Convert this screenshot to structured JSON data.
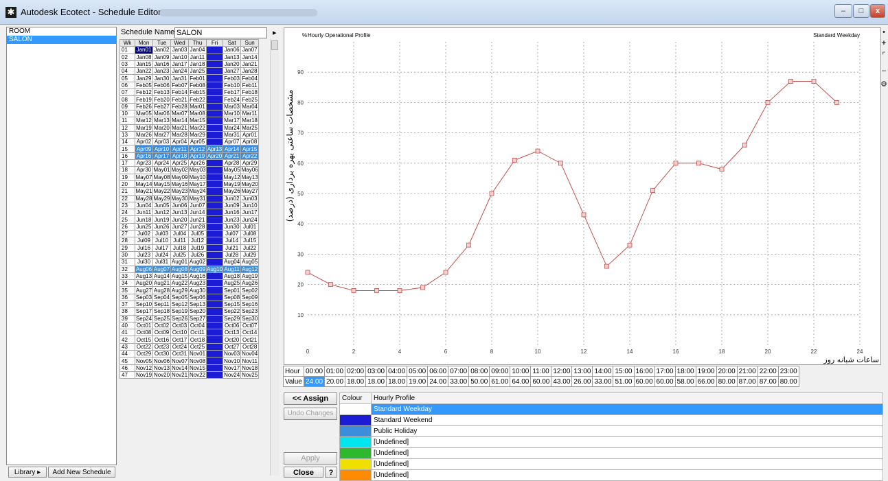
{
  "window": {
    "title": "Autodesk Ecotect - Schedule Editor",
    "controls": {
      "minimize": "–",
      "maximize": "□",
      "close": "x"
    }
  },
  "schedule_list": {
    "items": [
      "ROOM",
      "SALON"
    ],
    "selected": "SALON"
  },
  "bottom_left": {
    "library_label": "Library ▸",
    "add_schedule_label": "Add New Schedule"
  },
  "schedule_name": {
    "label": "Schedule Name:",
    "value": "SALON",
    "arrow": "▸"
  },
  "calendar": {
    "headers": [
      "Wk",
      "Mon",
      "Tue",
      "Wed",
      "Thu",
      "Fri",
      "Sat",
      "Sun"
    ],
    "rows": [
      [
        "01",
        "Jan01",
        "Jan02",
        "Jan03",
        "Jan04",
        "",
        "Jan06",
        "Jan07"
      ],
      [
        "02",
        "Jan08",
        "Jan09",
        "Jan10",
        "Jan11",
        "",
        "Jan13",
        "Jan14"
      ],
      [
        "03",
        "Jan15",
        "Jan16",
        "Jan17",
        "Jan18",
        "",
        "Jan20",
        "Jan21"
      ],
      [
        "04",
        "Jan22",
        "Jan23",
        "Jan24",
        "Jan25",
        "",
        "Jan27",
        "Jan28"
      ],
      [
        "05",
        "Jan29",
        "Jan30",
        "Jan31",
        "Feb01",
        "",
        "Feb03",
        "Feb04"
      ],
      [
        "06",
        "Feb05",
        "Feb06",
        "Feb07",
        "Feb08",
        "",
        "Feb10",
        "Feb11"
      ],
      [
        "07",
        "Feb12",
        "Feb13",
        "Feb14",
        "Feb15",
        "",
        "Feb17",
        "Feb18"
      ],
      [
        "08",
        "Feb19",
        "Feb20",
        "Feb21",
        "Feb22",
        "",
        "Feb24",
        "Feb25"
      ],
      [
        "09",
        "Feb26",
        "Feb27",
        "Feb28",
        "Mar01",
        "",
        "Mar03",
        "Mar04"
      ],
      [
        "10",
        "Mar05",
        "Mar06",
        "Mar07",
        "Mar08",
        "",
        "Mar10",
        "Mar11"
      ],
      [
        "11",
        "Mar12",
        "Mar13",
        "Mar14",
        "Mar15",
        "",
        "Mar17",
        "Mar18"
      ],
      [
        "12",
        "Mar19",
        "Mar20",
        "Mar21",
        "Mar22",
        "",
        "Mar24",
        "Mar25"
      ],
      [
        "13",
        "Mar26",
        "Mar27",
        "Mar28",
        "Mar29",
        "",
        "Mar31",
        "Apr01"
      ],
      [
        "14",
        "Apr02",
        "Apr03",
        "Apr04",
        "Apr05",
        "",
        "Apr07",
        "Apr08"
      ],
      [
        "15",
        "Apr09",
        "Apr10",
        "Apr11",
        "Apr12",
        "Apr13",
        "Apr14",
        "Apr15"
      ],
      [
        "16",
        "Apr16",
        "Apr17",
        "Apr18",
        "Apr19",
        "Apr20",
        "Apr21",
        "Apr22"
      ],
      [
        "17",
        "Apr23",
        "Apr24",
        "Apr25",
        "Apr26",
        "",
        "Apr28",
        "Apr29"
      ],
      [
        "18",
        "Apr30",
        "May01",
        "May02",
        "May03",
        "",
        "May05",
        "May06"
      ],
      [
        "19",
        "May07",
        "May08",
        "May09",
        "May10",
        "",
        "May12",
        "May13"
      ],
      [
        "20",
        "May14",
        "May15",
        "May16",
        "May17",
        "",
        "May19",
        "May20"
      ],
      [
        "21",
        "May21",
        "May22",
        "May23",
        "May24",
        "",
        "May26",
        "May27"
      ],
      [
        "22",
        "May28",
        "May29",
        "May30",
        "May31",
        "",
        "Jun02",
        "Jun03"
      ],
      [
        "23",
        "Jun04",
        "Jun05",
        "Jun06",
        "Jun07",
        "",
        "Jun09",
        "Jun10"
      ],
      [
        "24",
        "Jun11",
        "Jun12",
        "Jun13",
        "Jun14",
        "",
        "Jun16",
        "Jun17"
      ],
      [
        "25",
        "Jun18",
        "Jun19",
        "Jun20",
        "Jun21",
        "",
        "Jun23",
        "Jun24"
      ],
      [
        "26",
        "Jun25",
        "Jun26",
        "Jun27",
        "Jun28",
        "",
        "Jun30",
        "Jul01"
      ],
      [
        "27",
        "Jul02",
        "Jul03",
        "Jul04",
        "Jul05",
        "",
        "Jul07",
        "Jul08"
      ],
      [
        "28",
        "Jul09",
        "Jul10",
        "Jul11",
        "Jul12",
        "",
        "Jul14",
        "Jul15"
      ],
      [
        "29",
        "Jul16",
        "Jul17",
        "Jul18",
        "Jul19",
        "",
        "Jul21",
        "Jul22"
      ],
      [
        "30",
        "Jul23",
        "Jul24",
        "Jul25",
        "Jul26",
        "",
        "Jul28",
        "Jul29"
      ],
      [
        "31",
        "Jul30",
        "Jul31",
        "Aug01",
        "Aug02",
        "",
        "Aug04",
        "Aug05"
      ],
      [
        "32",
        "Aug06",
        "Aug07",
        "Aug08",
        "Aug09",
        "Aug10",
        "Aug11",
        "Aug12"
      ],
      [
        "33",
        "Aug13",
        "Aug14",
        "Aug15",
        "Aug16",
        "",
        "Aug18",
        "Aug19"
      ],
      [
        "34",
        "Aug20",
        "Aug21",
        "Aug22",
        "Aug23",
        "",
        "Aug25",
        "Aug26"
      ],
      [
        "35",
        "Aug27",
        "Aug28",
        "Aug29",
        "Aug30",
        "",
        "Sep01",
        "Sep02"
      ],
      [
        "36",
        "Sep03",
        "Sep04",
        "Sep05",
        "Sep06",
        "",
        "Sep08",
        "Sep09"
      ],
      [
        "37",
        "Sep10",
        "Sep11",
        "Sep12",
        "Sep13",
        "",
        "Sep15",
        "Sep16"
      ],
      [
        "38",
        "Sep17",
        "Sep18",
        "Sep19",
        "Sep20",
        "",
        "Sep22",
        "Sep23"
      ],
      [
        "39",
        "Sep24",
        "Sep25",
        "Sep26",
        "Sep27",
        "",
        "Sep29",
        "Sep30"
      ],
      [
        "40",
        "Oct01",
        "Oct02",
        "Oct03",
        "Oct04",
        "",
        "Oct06",
        "Oct07"
      ],
      [
        "41",
        "Oct08",
        "Oct09",
        "Oct10",
        "Oct11",
        "",
        "Oct13",
        "Oct14"
      ],
      [
        "42",
        "Oct15",
        "Oct16",
        "Oct17",
        "Oct18",
        "",
        "Oct20",
        "Oct21"
      ],
      [
        "43",
        "Oct22",
        "Oct23",
        "Oct24",
        "Oct25",
        "",
        "Oct27",
        "Oct28"
      ],
      [
        "44",
        "Oct29",
        "Oct30",
        "Oct31",
        "Nov01",
        "",
        "Nov03",
        "Nov04"
      ],
      [
        "45",
        "Nov05",
        "Nov06",
        "Nov07",
        "Nov08",
        "",
        "Nov10",
        "Nov11"
      ],
      [
        "46",
        "Nov12",
        "Nov13",
        "Nov14",
        "Nov15",
        "",
        "Nov17",
        "Nov18"
      ],
      [
        "47",
        "Nov19",
        "Nov20",
        "Nov21",
        "Nov22",
        "",
        "Nov24",
        "Nov25"
      ]
    ],
    "holiday_weeks": [
      "15",
      "16",
      "32"
    ]
  },
  "chart_data": {
    "type": "line",
    "title": "Hourly Operational Profile",
    "subtitle": "Standard Weekday",
    "y_unit_label": "%",
    "ylabel": "مشخصات ساعتی بهره برداری (درصد)",
    "xlabel": "ساعات شبانه روز",
    "x": [
      0,
      1,
      2,
      3,
      4,
      5,
      6,
      7,
      8,
      9,
      10,
      11,
      12,
      13,
      14,
      15,
      16,
      17,
      18,
      19,
      20,
      21,
      22,
      23
    ],
    "y": [
      24,
      20,
      18,
      18,
      18,
      19,
      24,
      33,
      50,
      61,
      64,
      60,
      43,
      26,
      33,
      51,
      60,
      60,
      58,
      66,
      80,
      87,
      87,
      80
    ],
    "xlim": [
      0,
      24
    ],
    "ylim": [
      0,
      100
    ],
    "x_ticks": [
      0,
      2,
      4,
      6,
      8,
      10,
      12,
      14,
      16,
      18,
      20,
      22,
      24
    ],
    "y_ticks": [
      10,
      20,
      30,
      40,
      50,
      60,
      70,
      80,
      90
    ],
    "grid": true,
    "line_color": "#c0504d"
  },
  "hour_value": {
    "hour_label": "Hour",
    "value_label": "Value",
    "hours": [
      "00:00",
      "01:00",
      "02:00",
      "03:00",
      "04:00",
      "05:00",
      "06:00",
      "07:00",
      "08:00",
      "09:00",
      "10:00",
      "11:00",
      "12:00",
      "13:00",
      "14:00",
      "15:00",
      "16:00",
      "17:00",
      "18:00",
      "19:00",
      "20:00",
      "21:00",
      "22:00",
      "23:00"
    ],
    "values": [
      "24.00",
      "20.00",
      "18.00",
      "18.00",
      "18.00",
      "19.00",
      "24.00",
      "33.00",
      "50.00",
      "61.00",
      "64.00",
      "60.00",
      "43.00",
      "26.00",
      "33.00",
      "51.00",
      "60.00",
      "60.00",
      "58.00",
      "66.00",
      "80.00",
      "87.00",
      "87.00",
      "80.00"
    ]
  },
  "actions": {
    "assign_label": "<< Assign",
    "undo_label": "Undo Changes",
    "apply_label": "Apply",
    "close_label": "Close",
    "help_label": "?"
  },
  "profiles": {
    "headers": [
      "Colour",
      "Hourly Profile"
    ],
    "rows": [
      {
        "color": "#ffffff",
        "name": "Standard Weekday"
      },
      {
        "color": "#1c1cd6",
        "name": "Standard Weekend"
      },
      {
        "color": "#3c8edc",
        "name": "Public Holiday"
      },
      {
        "color": "#00e5ee",
        "name": "[Undefined]"
      },
      {
        "color": "#2eb82e",
        "name": "[Undefined]"
      },
      {
        "color": "#f0e000",
        "name": "[Undefined]"
      },
      {
        "color": "#ff8c00",
        "name": "[Undefined]"
      }
    ]
  },
  "toolbar_glyphs": [
    "•",
    "+",
    "⌜",
    "–",
    "⚙"
  ]
}
